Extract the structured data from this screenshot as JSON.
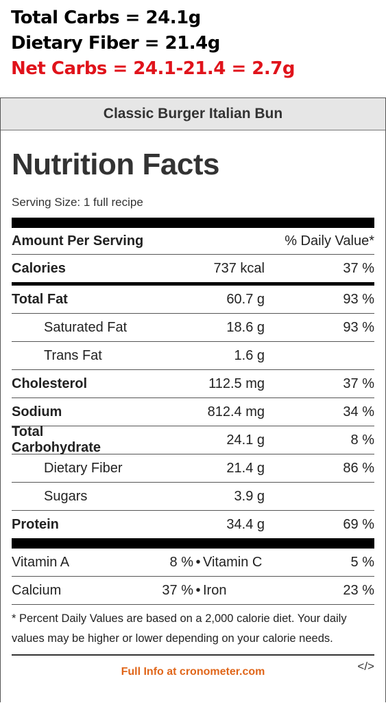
{
  "overlay": {
    "line1": "Total Carbs = 24.1g",
    "line2": "Dietary Fiber = 21.4g",
    "line3": "Net Carbs = 24.1-21.4 = 2.7g",
    "line3_color": "#e0131b"
  },
  "card": {
    "title": "Classic Burger Italian Bun",
    "heading": "Nutrition Facts",
    "serving": "Serving Size: 1 full recipe",
    "header": {
      "left": "Amount Per Serving",
      "right": "% Daily Value*"
    },
    "rows": [
      {
        "name": "Calories",
        "amount": "737 kcal",
        "dv": "37 %"
      },
      {
        "name": "Total Fat",
        "amount": "60.7 g",
        "dv": "93 %"
      },
      {
        "name": "Saturated Fat",
        "amount": "18.6 g",
        "dv": "93 %"
      },
      {
        "name": "Trans Fat",
        "amount": "1.6 g",
        "dv": ""
      },
      {
        "name": "Cholesterol",
        "amount": "112.5 mg",
        "dv": "37 %"
      },
      {
        "name": "Sodium",
        "amount": "812.4 mg",
        "dv": "34 %"
      },
      {
        "name": "Total Carbohydrate",
        "amount": "24.1 g",
        "dv": "8 %"
      },
      {
        "name": "Dietary Fiber",
        "amount": "21.4 g",
        "dv": "86 %"
      },
      {
        "name": "Sugars",
        "amount": "3.9 g",
        "dv": ""
      },
      {
        "name": "Protein",
        "amount": "34.4 g",
        "dv": "69 %"
      }
    ],
    "vitamins": [
      {
        "n1": "Vitamin A",
        "v1": "8 %",
        "sep": "•",
        "n2": "Vitamin C",
        "v2": "5 %"
      },
      {
        "n1": "Calcium",
        "v1": "37 %",
        "sep": "•",
        "n2": "Iron",
        "v2": "23 %"
      }
    ],
    "footnote": "* Percent Daily Values are based on a 2,000 calorie diet. Your daily values may be higher or lower depending on your calorie needs.",
    "footer_link": "Full Info at cronometer.com",
    "embed_code": "</>"
  }
}
